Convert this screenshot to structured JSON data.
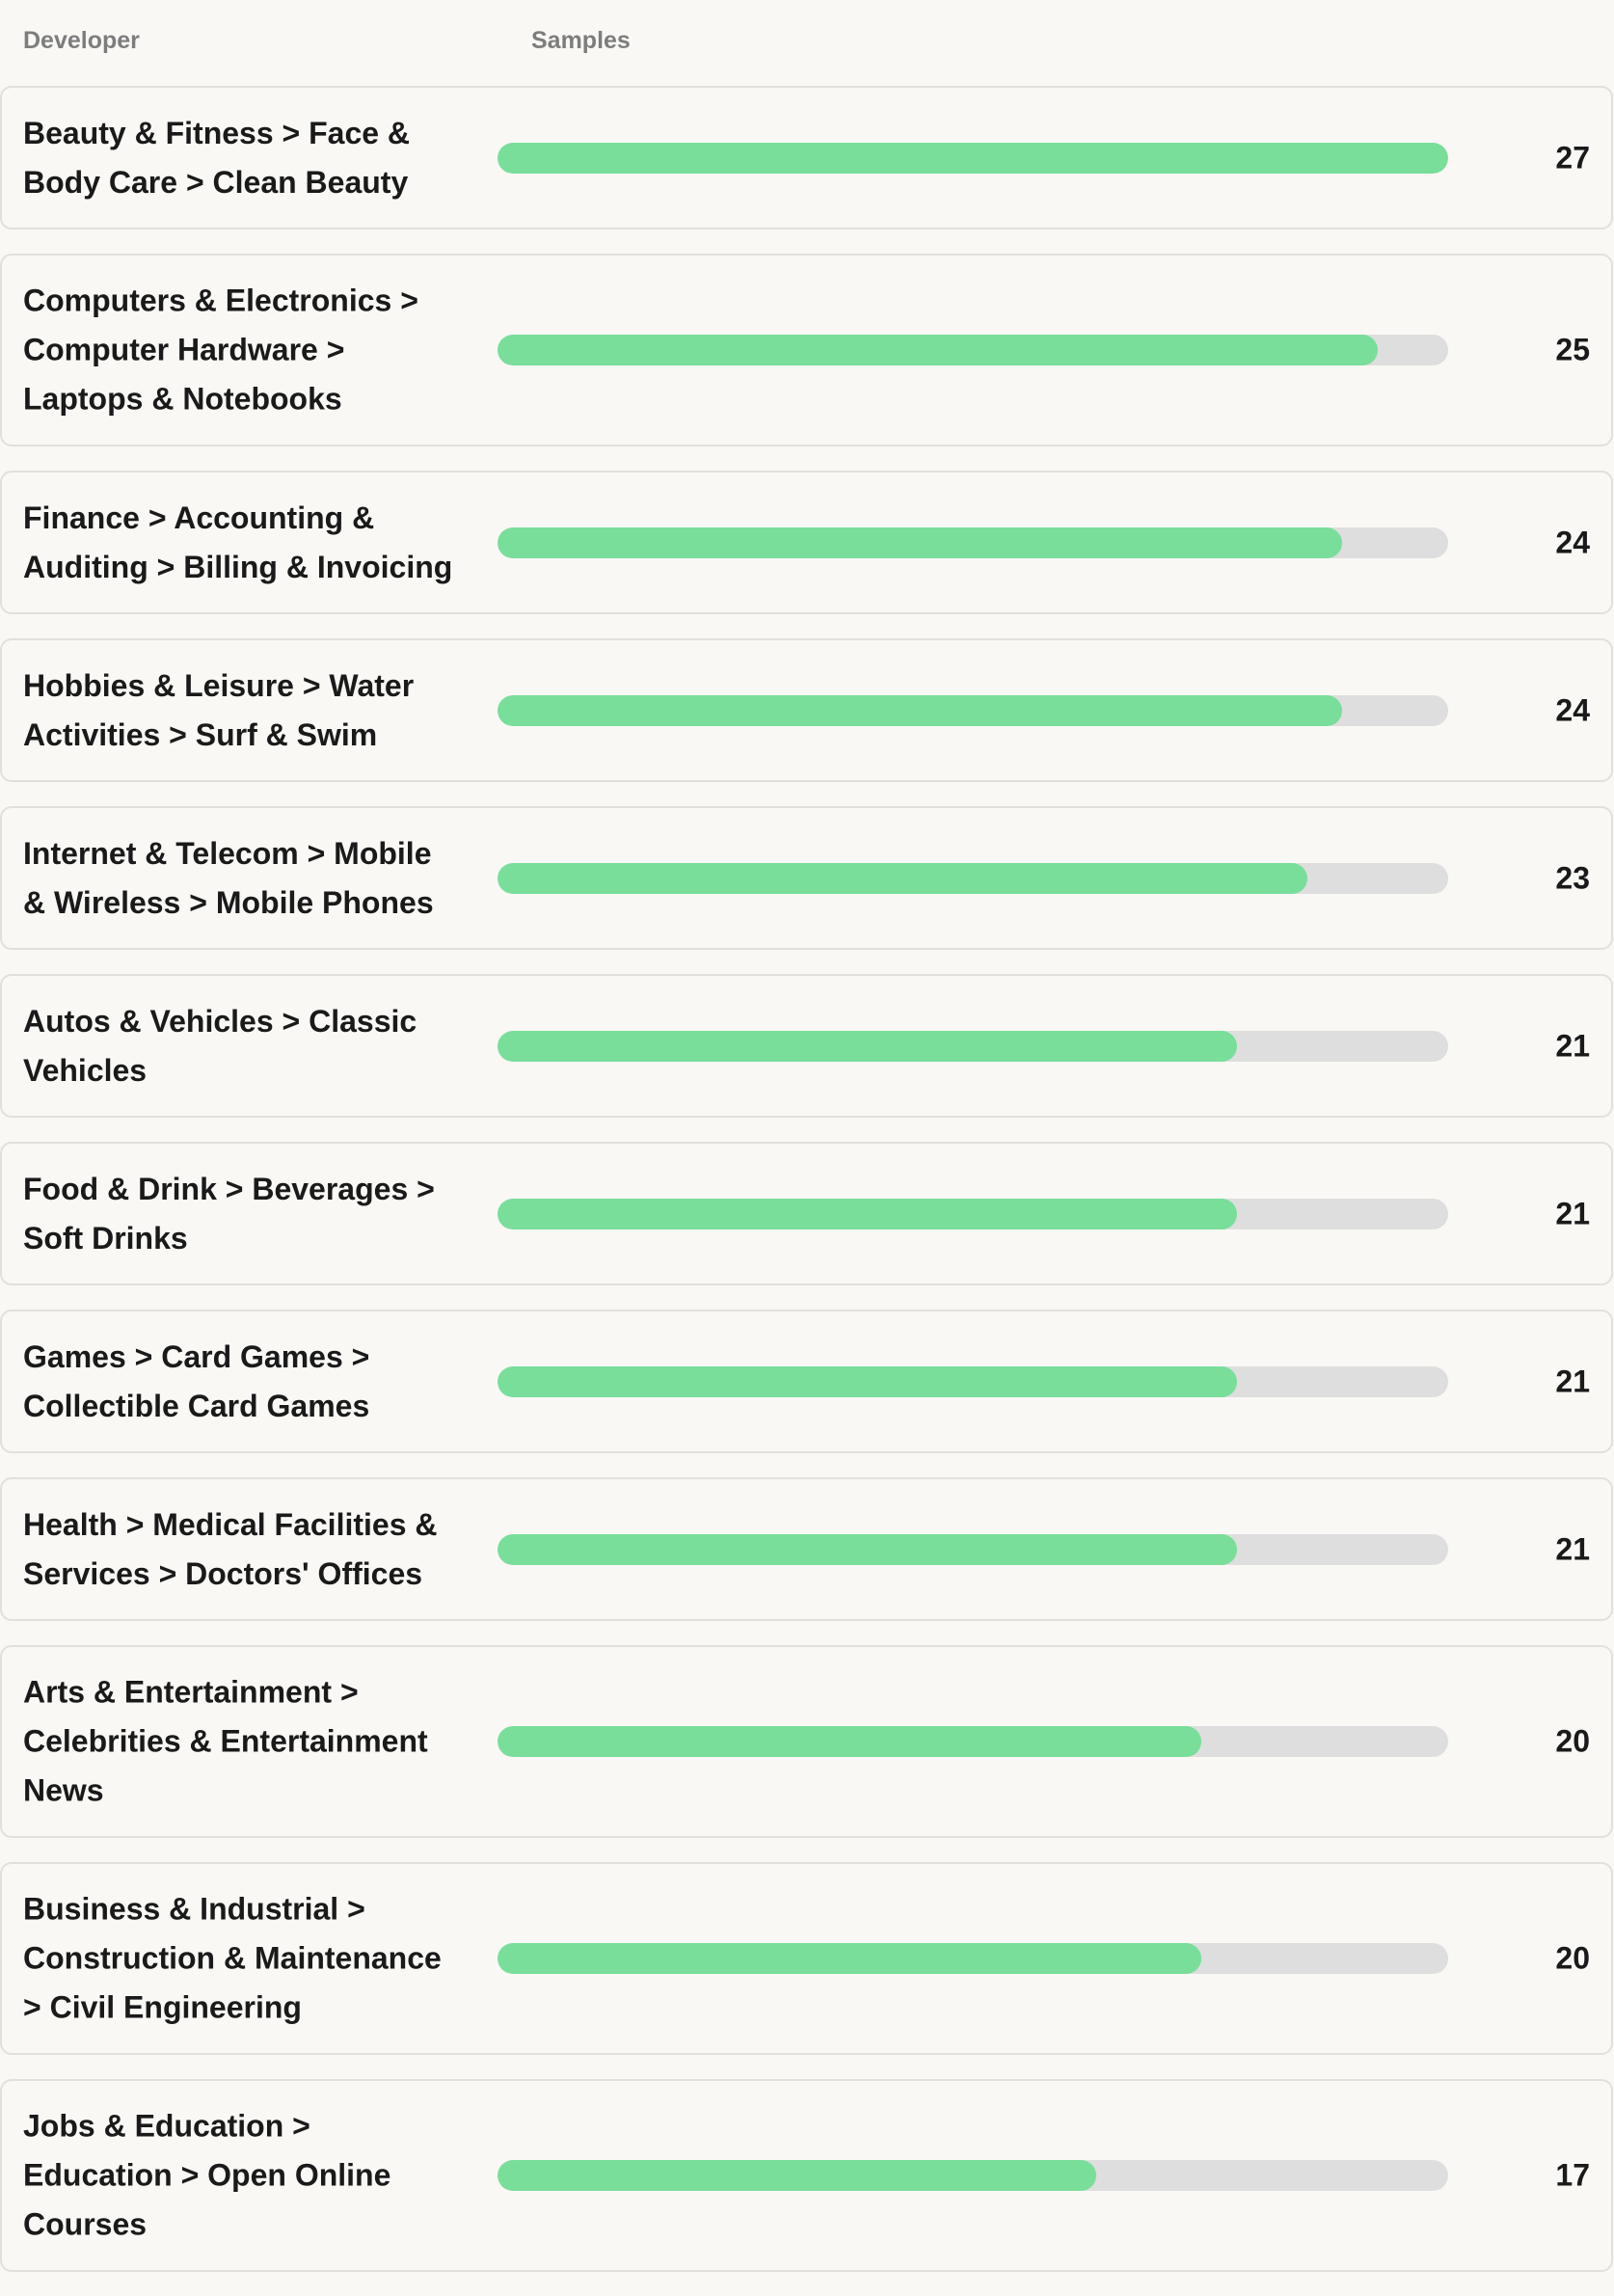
{
  "header": {
    "developer_label": "Developer",
    "samples_label": "Samples"
  },
  "colors": {
    "bar_fill": "#79de9a",
    "bar_track": "#dedede",
    "background": "#f9f8f5"
  },
  "max_value": 27,
  "rows": [
    {
      "label": "Beauty & Fitness > Face & Body Care > Clean Beauty",
      "value": 27,
      "lines": 2
    },
    {
      "label": "Computers & Electronics > Computer Hardware > Laptops & Notebooks",
      "value": 25,
      "lines": 3
    },
    {
      "label": "Finance > Accounting & Auditing > Billing & Invoicing",
      "value": 24,
      "lines": 2
    },
    {
      "label": "Hobbies & Leisure > Water Activities > Surf & Swim",
      "value": 24,
      "lines": 2
    },
    {
      "label": "Internet & Telecom > Mobile & Wireless > Mobile Phones",
      "value": 23,
      "lines": 2
    },
    {
      "label": "Autos & Vehicles > Classic Vehicles",
      "value": 21,
      "lines": 2
    },
    {
      "label": "Food & Drink > Beverages > Soft Drinks",
      "value": 21,
      "lines": 2
    },
    {
      "label": "Games > Card Games > Collectible Card Games",
      "value": 21,
      "lines": 2
    },
    {
      "label": "Health > Medical Facilities & Services > Doctors' Offices",
      "value": 21,
      "lines": 2
    },
    {
      "label": "Arts & Entertainment > Celebrities & Entertainment News",
      "value": 20,
      "lines": 3
    },
    {
      "label": "Business & Industrial > Construction & Maintenance > Civil Engineering",
      "value": 20,
      "lines": 3
    },
    {
      "label": "Jobs & Education > Education > Open Online Courses",
      "value": 17,
      "lines": 3
    }
  ]
}
